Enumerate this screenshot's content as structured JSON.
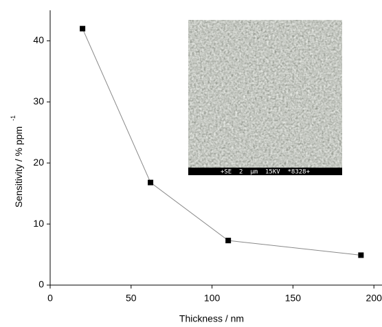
{
  "chart_data": {
    "type": "line",
    "x_label": "Thickness / nm",
    "y_label": "Sensitivity / % ppm",
    "y_label_sup": "-1",
    "inset_label": "+SE  2  µm  15KV  *8328+",
    "x": [
      20,
      62,
      110,
      192
    ],
    "series": [
      {
        "color": "#000000",
        "values": [
          42,
          16.8,
          7.3,
          4.9
        ]
      }
    ],
    "xlim": [
      0,
      205
    ],
    "xticks": [
      0,
      50,
      100,
      150,
      200
    ],
    "ylim": [
      0,
      45
    ],
    "yticks": [
      0,
      10,
      20,
      30,
      40
    ]
  }
}
